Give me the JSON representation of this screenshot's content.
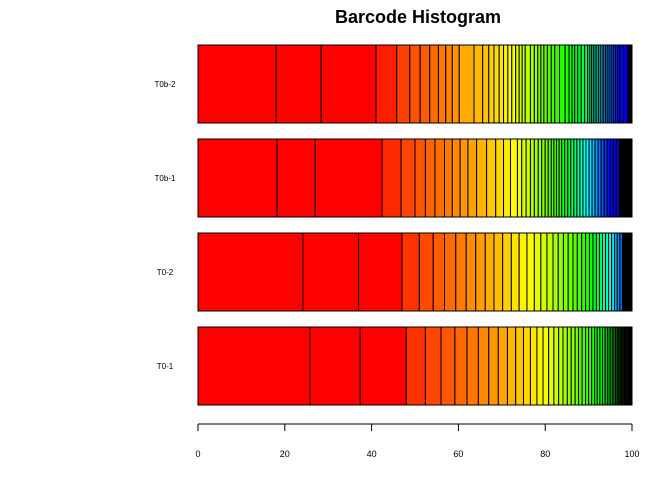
{
  "chart_data": {
    "type": "bar",
    "orientation": "horizontal-stacked",
    "title": "Barcode Histogram",
    "xlabel": "",
    "ylabel": "",
    "xlim": [
      0,
      100
    ],
    "x_ticks": [
      "0",
      "20",
      "40",
      "60",
      "80",
      "100"
    ],
    "grid": false,
    "legend": "none",
    "categories": [
      "T0b-2",
      "T0b-1",
      "T0-2",
      "T0-1"
    ],
    "series": [
      {
        "category": "T0b-2",
        "boundaries": [
          0,
          18,
          28.4,
          41,
          45.8,
          48.8,
          51.2,
          53.4,
          55.4,
          57.1,
          58.6,
          60.2,
          63.6,
          65.6,
          67,
          68.2,
          69.4,
          70.4,
          71.4,
          72.3,
          73.2,
          74,
          74.7,
          75.4,
          76.6,
          77.5,
          78.3,
          79,
          79.7,
          80.5,
          81.4,
          82.2,
          83.3,
          84.6,
          85.5,
          86.2,
          86.8,
          87.5,
          88.3,
          89.1,
          89.8,
          90.3,
          90.7,
          91.1,
          91.5,
          91.9,
          92.3,
          92.7,
          93.1,
          93.5,
          93.9,
          94.3,
          94.7,
          95.2,
          95.7,
          96.2,
          96.7,
          97.2,
          98.1,
          99,
          99.5,
          100
        ],
        "colors": [
          "#ff0000",
          "#ff0000",
          "#ff0000",
          "#ff1d00",
          "#ff4000",
          "#ff5200",
          "#ff5e00",
          "#ff6a00",
          "#ff7a00",
          "#ff8600",
          "#ff9400",
          "#ffaa00",
          "#ffb700",
          "#ffc400",
          "#ffd000",
          "#ffdb00",
          "#ffe600",
          "#fff100",
          "#fffc00",
          "#f2ff00",
          "#e4ff00",
          "#d6ff00",
          "#c7ff00",
          "#b8ff00",
          "#a8ff00",
          "#98ff00",
          "#88ff00",
          "#78ff00",
          "#66ff00",
          "#55ff00",
          "#44ff00",
          "#33ff00",
          "#26ff00",
          "#1aff00",
          "#12ff00",
          "#0aff00",
          "#00ff12",
          "#00ff2a",
          "#00ff42",
          "#00ff5a",
          "#00ff72",
          "#00ff8a",
          "#00ffa2",
          "#00ffba",
          "#00ffd2",
          "#00ffea",
          "#00f4ff",
          "#00dcff",
          "#00c4ff",
          "#00acff",
          "#0094ff",
          "#007cff",
          "#0064ff",
          "#004cff",
          "#0034ff",
          "#001cff",
          "#0004ff",
          "#0000ff",
          "#0000ff",
          "#000000",
          "#000000"
        ]
      },
      {
        "category": "T0b-1",
        "boundaries": [
          0,
          18.2,
          27,
          42.4,
          46.8,
          50,
          52.4,
          54.6,
          56.8,
          58.6,
          60.4,
          62.2,
          64.2,
          66.5,
          68.6,
          70.4,
          72,
          73.6,
          74.6,
          75.6,
          76.6,
          77.5,
          78.4,
          79.2,
          80,
          80.7,
          81.4,
          82,
          82.6,
          83.2,
          83.8,
          84.5,
          85.2,
          85.9,
          86.6,
          87.3,
          88,
          88.7,
          89.4,
          90.1,
          90.8,
          91.5,
          92.2,
          92.9,
          93.6,
          94.3,
          95,
          95.7,
          96.4,
          97.1,
          98,
          99,
          100
        ],
        "colors": [
          "#ff0000",
          "#ff0000",
          "#ff0000",
          "#ff2a00",
          "#ff4500",
          "#ff5500",
          "#ff6200",
          "#ff6f00",
          "#ff7c00",
          "#ff8800",
          "#ff9500",
          "#ffa200",
          "#ffb500",
          "#ffc900",
          "#ffdb00",
          "#ffec00",
          "#fffb00",
          "#eeff00",
          "#ddff00",
          "#ccff00",
          "#bbff00",
          "#aaff00",
          "#99ff00",
          "#88ff00",
          "#77ff00",
          "#66ff00",
          "#55ff00",
          "#44ff00",
          "#33ff00",
          "#22ff00",
          "#11ff00",
          "#00ff11",
          "#00ff33",
          "#00ff55",
          "#00ff77",
          "#00ff99",
          "#00ffbb",
          "#00ffdd",
          "#00ffff",
          "#00ddff",
          "#00bbff",
          "#0099ff",
          "#0077ff",
          "#0055ff",
          "#0033ff",
          "#0011ff",
          "#0000ff",
          "#0000ee",
          "#0000cc",
          "#000000",
          "#000000",
          "#000000"
        ]
      },
      {
        "category": "T0-2",
        "boundaries": [
          0,
          24.2,
          37,
          47,
          51,
          54.2,
          56.8,
          59.4,
          61.8,
          64,
          66.2,
          68.2,
          70.2,
          72.2,
          74,
          75.8,
          77.5,
          79,
          80.4,
          81.8,
          83,
          84.2,
          85.3,
          86.4,
          87.4,
          88.4,
          89.3,
          90.2,
          91,
          91.8,
          92.5,
          93.2,
          93.9,
          94.6,
          95.3,
          96,
          96.6,
          97.2,
          97.8,
          98.4,
          99,
          99.5,
          100
        ],
        "colors": [
          "#ff0000",
          "#ff0000",
          "#ff0000",
          "#ff3300",
          "#ff4a00",
          "#ff5a00",
          "#ff6a00",
          "#ff7b00",
          "#ff8c00",
          "#ff9d00",
          "#ffae00",
          "#ffbf00",
          "#ffd000",
          "#ffe100",
          "#fff200",
          "#f9ff00",
          "#e6ff00",
          "#d2ff00",
          "#beff00",
          "#aaff00",
          "#96ff00",
          "#82ff00",
          "#6eff00",
          "#5aff00",
          "#46ff00",
          "#32ff00",
          "#1eff00",
          "#0aff00",
          "#00ff1e",
          "#00ff46",
          "#00ff6e",
          "#00ff96",
          "#00ffbe",
          "#00ffe6",
          "#00e6ff",
          "#00beff",
          "#0096ff",
          "#006eff",
          "#000000",
          "#000000",
          "#000000",
          "#000000"
        ]
      },
      {
        "category": "T0-1",
        "boundaries": [
          0,
          25.8,
          37.4,
          48,
          52.4,
          56,
          59.2,
          62,
          64.6,
          67,
          69.2,
          71.3,
          73.2,
          75,
          76.6,
          78.1,
          79.5,
          80.8,
          82,
          83.1,
          84.1,
          85.1,
          86,
          86.9,
          87.7,
          88.5,
          89.3,
          90,
          90.7,
          91.4,
          92,
          92.6,
          93.2,
          93.8,
          94.4,
          95,
          95.6,
          96.2,
          96.8,
          97.5,
          98.3,
          99.2,
          100
        ],
        "colors": [
          "#ff0000",
          "#ff0000",
          "#ff0000",
          "#ff3000",
          "#ff4600",
          "#ff5600",
          "#ff6600",
          "#ff7600",
          "#ff8600",
          "#ff9600",
          "#ffa600",
          "#ffb600",
          "#ffc600",
          "#ffd600",
          "#ffe600",
          "#fff600",
          "#f4ff00",
          "#e2ff00",
          "#d0ff00",
          "#beff00",
          "#acff00",
          "#9aff00",
          "#88ff00",
          "#76ff00",
          "#64ff00",
          "#52ff00",
          "#40ff00",
          "#2eff00",
          "#1cff00",
          "#0aff00",
          "#00ff0a",
          "#00f800",
          "#00e000",
          "#00c800",
          "#00a800",
          "#008800",
          "#006800",
          "#004800",
          "#002800",
          "#001400",
          "#000800",
          "#000000"
        ]
      }
    ]
  }
}
